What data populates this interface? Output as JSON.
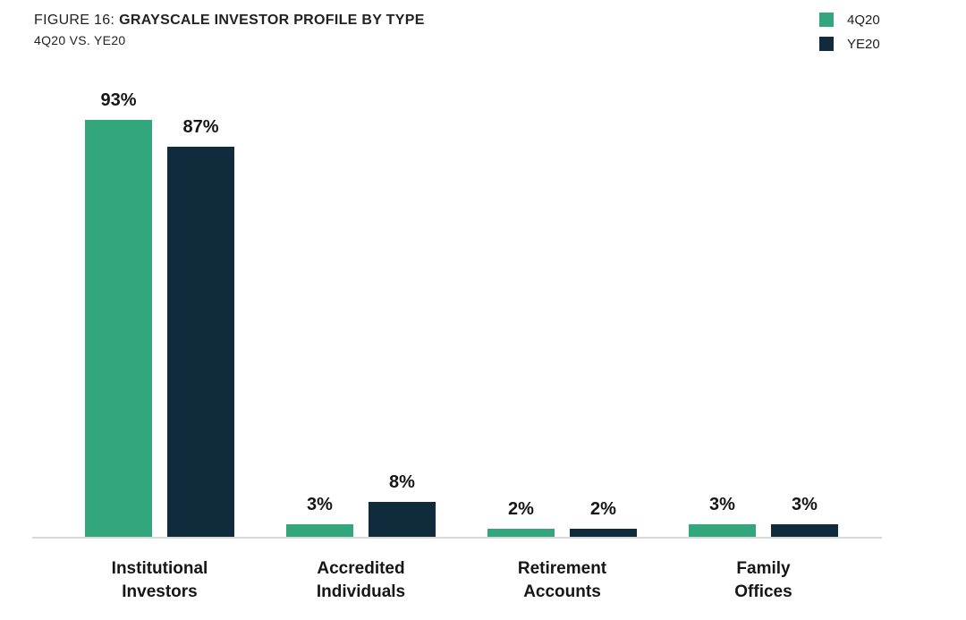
{
  "figure": {
    "title_prefix": "FIGURE 16:",
    "title_bold": "GRAYSCALE INVESTOR PROFILE BY TYPE",
    "subtitle": "4Q20 VS. YE20"
  },
  "legend": {
    "items": [
      {
        "label": "4Q20",
        "color": "#34a67e"
      },
      {
        "label": "YE20",
        "color": "#102c3c"
      }
    ]
  },
  "colors": {
    "series_4q20": "#34a67e",
    "series_ye20": "#102c3c",
    "axis_line": "#d9d9d9",
    "text": "#161616"
  },
  "chart_data": {
    "type": "bar",
    "title": "FIGURE 16: GRAYSCALE INVESTOR PROFILE BY TYPE",
    "subtitle": "4Q20 VS. YE20",
    "categories": [
      "Institutional Investors",
      "Accredited Individuals",
      "Retirement Accounts",
      "Family Offices"
    ],
    "series": [
      {
        "name": "4Q20",
        "color": "#34a67e",
        "values": [
          93,
          3,
          2,
          3
        ]
      },
      {
        "name": "YE20",
        "color": "#102c3c",
        "values": [
          87,
          8,
          2,
          3
        ]
      }
    ],
    "value_labels": [
      [
        "93%",
        "3%",
        "2%",
        "3%"
      ],
      [
        "87%",
        "8%",
        "2%",
        "3%"
      ]
    ],
    "value_format": "percent",
    "xlabel": "",
    "ylabel": "",
    "ylim": [
      0,
      100
    ],
    "grid": false,
    "y_axis_visible": false,
    "legend_position": "top-right"
  }
}
